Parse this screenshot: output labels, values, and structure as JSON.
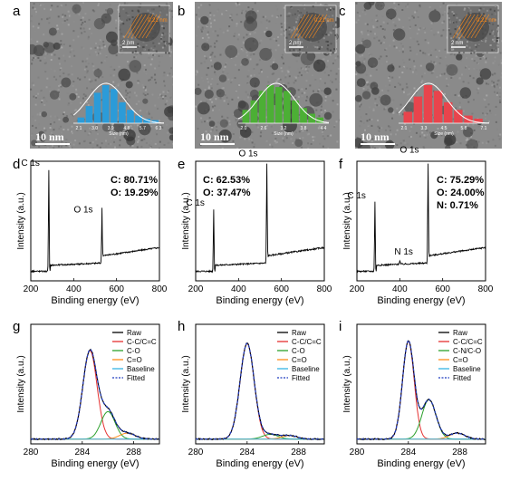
{
  "tem": [
    {
      "letter": "a",
      "scale": "10 nm",
      "inset_scale": "2 nm",
      "inset_spacing": "0.21 nm",
      "hist_xlabel": "Size (nm)",
      "hist_ticks": [
        "2.1",
        "3.0",
        "3.9",
        "4.8",
        "5.7",
        "6.3"
      ],
      "hist_color": "#2b9bd8",
      "hist_values": [
        0.15,
        0.45,
        0.8,
        1.0,
        0.9,
        0.55,
        0.35,
        0.2,
        0.12,
        0.08
      ]
    },
    {
      "letter": "b",
      "scale": "10 nm",
      "inset_scale": "2 nm",
      "inset_spacing": "0.21 nm",
      "hist_xlabel": "Size (nm)",
      "hist_ticks": [
        "2.0",
        "2.6",
        "3.2",
        "3.8",
        "4.4"
      ],
      "hist_color": "#4caf35",
      "hist_values": [
        0.35,
        0.6,
        0.85,
        1.0,
        0.95,
        0.85,
        0.6,
        0.4,
        0.25,
        0.15
      ]
    },
    {
      "letter": "c",
      "scale": "10 nm",
      "inset_scale": "2 nm",
      "inset_spacing": "0.21 nm",
      "hist_xlabel": "Size (nm)",
      "hist_ticks": [
        "2.1",
        "3.3",
        "4.5",
        "5.8",
        "7.1"
      ],
      "hist_color": "#e8444c",
      "hist_values": [
        0.3,
        0.7,
        1.0,
        0.85,
        0.55,
        0.35,
        0.2,
        0.12
      ]
    }
  ],
  "chart_data": [
    {
      "letter": "d",
      "type": "line",
      "xlabel": "Binding energy (eV)",
      "ylabel": "Intensity (a.u.)",
      "xlim": [
        200,
        800
      ],
      "xticks": [
        "200",
        "400",
        "600",
        "800"
      ],
      "peaks": [
        {
          "label": "C 1s",
          "x": 284
        },
        {
          "label": "O 1s",
          "x": 532
        }
      ],
      "annotation": [
        "C: 80.71%",
        "O: 19.29%"
      ]
    },
    {
      "letter": "e",
      "type": "line",
      "xlabel": "Binding energy (eV)",
      "ylabel": "Intensity (a.u.)",
      "xlim": [
        200,
        800
      ],
      "xticks": [
        "200",
        "400",
        "600",
        "800"
      ],
      "peaks": [
        {
          "label": "C 1s",
          "x": 284
        },
        {
          "label": "O 1s",
          "x": 532
        }
      ],
      "annotation": [
        "C: 62.53%",
        "O: 37.47%"
      ]
    },
    {
      "letter": "f",
      "type": "line",
      "xlabel": "Binding energy (eV)",
      "ylabel": "Intensity (a.u.)",
      "xlim": [
        200,
        800
      ],
      "xticks": [
        "200",
        "400",
        "600",
        "800"
      ],
      "peaks": [
        {
          "label": "C 1s",
          "x": 284
        },
        {
          "label": "N 1s",
          "x": 400
        },
        {
          "label": "O 1s",
          "x": 532
        }
      ],
      "annotation": [
        "C: 75.29%",
        "O: 24.00%",
        "N:   0.71%"
      ]
    },
    {
      "letter": "g",
      "type": "line",
      "xlabel": "Binding energy (eV)",
      "ylabel": "Intensity (a.u.)",
      "xlim": [
        280,
        290
      ],
      "xticks": [
        "280",
        "284",
        "288"
      ],
      "legend": [
        {
          "name": "Raw",
          "color": "#000000"
        },
        {
          "name": "C-C/C=C",
          "color": "#e53030"
        },
        {
          "name": "C-O",
          "color": "#2ca02c"
        },
        {
          "name": "C=O",
          "color": "#ff8c1a"
        },
        {
          "name": "Baseline",
          "color": "#36b5e5"
        },
        {
          "name": "Fitted",
          "color": "#1f3bbf",
          "dashed": true
        }
      ]
    },
    {
      "letter": "h",
      "type": "line",
      "xlabel": "Binding energy (eV)",
      "ylabel": "Intensity (a.u.)",
      "xlim": [
        280,
        290
      ],
      "xticks": [
        "280",
        "284",
        "288"
      ],
      "legend": [
        {
          "name": "Raw",
          "color": "#000000"
        },
        {
          "name": "C-C/C=C",
          "color": "#e53030"
        },
        {
          "name": "C-O",
          "color": "#2ca02c"
        },
        {
          "name": "C=O",
          "color": "#ff8c1a"
        },
        {
          "name": "Baseline",
          "color": "#36b5e5"
        },
        {
          "name": "Fitted",
          "color": "#1f3bbf",
          "dashed": true
        }
      ]
    },
    {
      "letter": "i",
      "type": "line",
      "xlabel": "Binding energy (eV)",
      "ylabel": "Intensity (a.u.)",
      "xlim": [
        280,
        290
      ],
      "xticks": [
        "280",
        "284",
        "288"
      ],
      "legend": [
        {
          "name": "Raw",
          "color": "#000000"
        },
        {
          "name": "C-C/C=C",
          "color": "#e53030"
        },
        {
          "name": "C-N/C-O",
          "color": "#2ca02c"
        },
        {
          "name": "C=O",
          "color": "#ff8c1a"
        },
        {
          "name": "Baseline",
          "color": "#36b5e5"
        },
        {
          "name": "Fitted",
          "color": "#1f3bbf",
          "dashed": true
        }
      ]
    }
  ]
}
